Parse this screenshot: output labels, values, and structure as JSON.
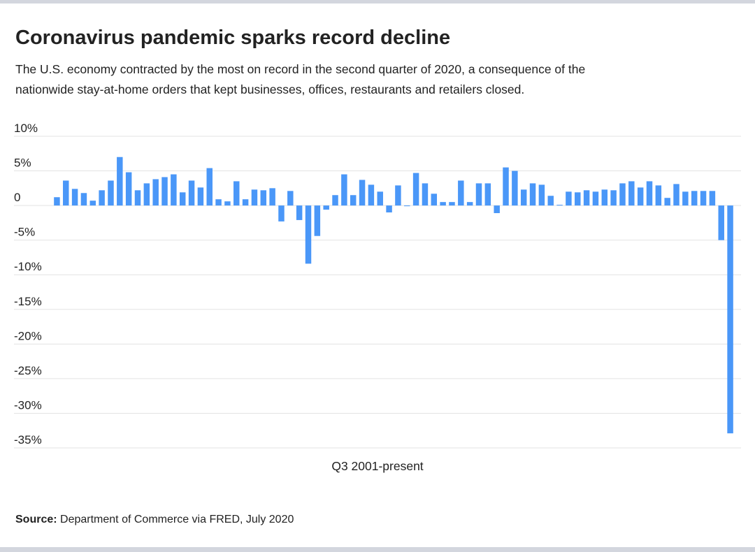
{
  "chart_data": {
    "type": "bar",
    "title": "Coronavirus pandemic sparks record decline",
    "subtitle": [
      "The U.S. economy contracted by the most on record in the second quarter of 2020, a consequence of the",
      "nationwide stay-at-home orders that kept businesses, offices, restaurants and retailers closed."
    ],
    "x_label": "Q3 2001-present",
    "color": "#4a97f8",
    "values": [
      1.2,
      3.6,
      2.4,
      1.8,
      0.7,
      2.2,
      3.6,
      7.0,
      4.8,
      2.2,
      3.2,
      3.8,
      4.1,
      4.5,
      1.9,
      3.6,
      2.6,
      5.4,
      0.9,
      0.6,
      3.5,
      0.9,
      2.3,
      2.2,
      2.5,
      -2.3,
      2.1,
      -2.1,
      -8.4,
      -4.4,
      -0.6,
      1.5,
      4.5,
      1.5,
      3.7,
      3.0,
      2.0,
      -1.0,
      2.9,
      -0.1,
      4.7,
      3.2,
      1.7,
      0.5,
      0.5,
      3.6,
      0.5,
      3.2,
      3.2,
      -1.1,
      5.5,
      5.0,
      2.3,
      3.2,
      3.0,
      1.4,
      0.1,
      2.0,
      1.9,
      2.2,
      2.0,
      2.3,
      2.2,
      3.2,
      3.5,
      2.6,
      3.5,
      2.9,
      1.1,
      3.1,
      2.0,
      2.1,
      2.1,
      2.1,
      -5.0,
      -32.9
    ],
    "ylim": [
      -35,
      10
    ],
    "yticks": [
      {
        "value": 10,
        "label": "10%"
      },
      {
        "value": 5,
        "label": "5%"
      },
      0,
      {
        "value": -5,
        "label": "-5%"
      },
      {
        "value": -10,
        "label": "-10%"
      },
      {
        "value": -15,
        "label": "-15%"
      },
      {
        "value": -20,
        "label": "-20%"
      },
      {
        "value": -25,
        "label": "-25%"
      },
      {
        "value": -30,
        "label": "-30%"
      },
      {
        "value": -35,
        "label": "-35%"
      }
    ],
    "grid": true,
    "source": {
      "label": "Source:",
      "text": "Department of Commerce via FRED, July 2020"
    }
  }
}
